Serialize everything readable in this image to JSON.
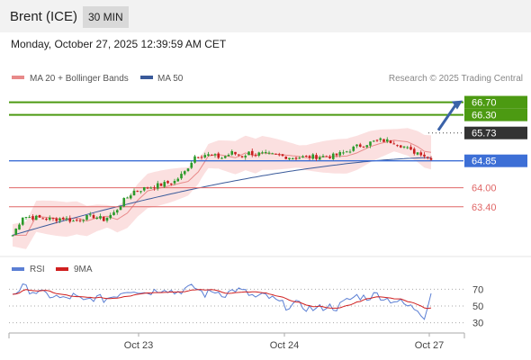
{
  "header": {
    "instrument": "Brent (ICE)",
    "timeframe": "30 MIN"
  },
  "timestamp": "Monday, October 27, 2025 12:39:59 AM CET",
  "legend": {
    "ma20_bb": "MA 20 + Bollinger Bands",
    "ma50": "MA 50",
    "credit": "Research © 2025 Trading Central"
  },
  "rsi_legend": {
    "rsi": "RSI",
    "ma": "9MA"
  },
  "colors": {
    "resistance": "#4c9a12",
    "pivot": "#3d6fd6",
    "support": "#e06666",
    "candle_up": "#2a9a2a",
    "candle_down": "#c81e1e",
    "ma50": "#3a5a9a",
    "ma20": "#e88a8a",
    "band_fill": "#fbe0e0",
    "rsi": "#5b7fd4",
    "rsi_ma": "#d02020",
    "arrow": "#3a62a8"
  },
  "chart_data": {
    "type": "candlestick",
    "price_range": [
      62.2,
      67.0
    ],
    "x_ticks": [
      "Oct 23",
      "Oct 24",
      "Oct 27"
    ],
    "levels": [
      {
        "label": "66.70",
        "value": 66.7,
        "kind": "resistance"
      },
      {
        "label": "66.30",
        "value": 66.3,
        "kind": "resistance"
      },
      {
        "label": "65.73",
        "value": 65.73,
        "kind": "last"
      },
      {
        "label": "64.85",
        "value": 64.85,
        "kind": "pivot"
      },
      {
        "label": "64.00",
        "value": 64.0,
        "kind": "support"
      },
      {
        "label": "63.40",
        "value": 63.4,
        "kind": "support"
      }
    ],
    "close_key": [
      [
        0,
        62.5
      ],
      [
        3,
        63.1
      ],
      [
        12,
        63.0
      ],
      [
        15,
        63.05
      ],
      [
        18,
        62.95
      ],
      [
        21,
        63.05
      ],
      [
        24,
        63.1
      ],
      [
        27,
        63.0
      ],
      [
        30,
        63.2
      ],
      [
        33,
        63.6
      ],
      [
        36,
        63.9
      ],
      [
        42,
        64.05
      ],
      [
        48,
        64.2
      ],
      [
        51,
        64.5
      ],
      [
        54,
        65.0
      ],
      [
        57,
        65.05
      ],
      [
        62,
        64.95
      ],
      [
        65,
        65.1
      ],
      [
        68,
        65.0
      ],
      [
        70,
        65.1
      ],
      [
        80,
        65.0
      ],
      [
        83,
        64.95
      ],
      [
        89,
        64.98
      ],
      [
        95,
        65.0
      ],
      [
        98,
        65.1
      ],
      [
        102,
        65.3
      ],
      [
        105,
        65.4
      ],
      [
        109,
        65.5
      ],
      [
        113,
        65.45
      ],
      [
        116,
        65.3
      ],
      [
        118,
        65.15
      ],
      [
        121,
        65.1
      ],
      [
        123,
        64.95
      ]
    ],
    "ma50_range": [
      62.5,
      64.95
    ],
    "rsi": {
      "range": [
        20,
        80
      ],
      "levels": [
        70,
        50,
        30
      ],
      "key": [
        [
          0,
          65
        ],
        [
          3,
          72
        ],
        [
          6,
          68
        ],
        [
          9,
          64
        ],
        [
          12,
          62
        ],
        [
          15,
          58
        ],
        [
          18,
          62
        ],
        [
          21,
          55
        ],
        [
          24,
          60
        ],
        [
          27,
          58
        ],
        [
          30,
          62
        ],
        [
          33,
          68
        ],
        [
          36,
          70
        ],
        [
          39,
          66
        ],
        [
          42,
          68
        ],
        [
          45,
          72
        ],
        [
          48,
          66
        ],
        [
          51,
          70
        ],
        [
          54,
          72
        ],
        [
          57,
          64
        ],
        [
          60,
          68
        ],
        [
          63,
          64
        ],
        [
          66,
          70
        ],
        [
          69,
          66
        ],
        [
          72,
          60
        ],
        [
          75,
          62
        ],
        [
          78,
          56
        ],
        [
          81,
          50
        ],
        [
          84,
          52
        ],
        [
          87,
          48
        ],
        [
          90,
          46
        ],
        [
          93,
          50
        ],
        [
          96,
          48
        ],
        [
          99,
          56
        ],
        [
          102,
          62
        ],
        [
          105,
          60
        ],
        [
          108,
          64
        ],
        [
          111,
          58
        ],
        [
          114,
          56
        ],
        [
          117,
          50
        ],
        [
          120,
          46
        ],
        [
          122,
          38
        ],
        [
          124,
          66
        ]
      ]
    }
  }
}
